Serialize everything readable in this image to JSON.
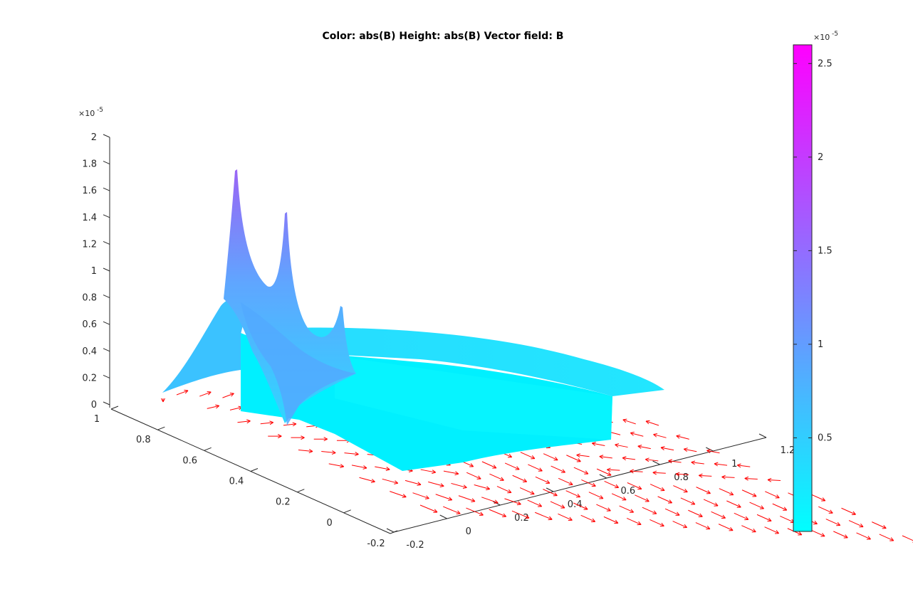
{
  "chart_data": {
    "type": "surface3d",
    "title": "Color: abs(B)  Height: abs(B)  Vector field: B",
    "xlabel": "",
    "ylabel": "",
    "zlabel": "",
    "z_exponent_label": "×10",
    "z_exponent": "-5",
    "colorbar_exponent_label": "×10",
    "colorbar_exponent": "-5",
    "x_ticks": [
      "-0.2",
      "0",
      "0.2",
      "0.4",
      "0.6",
      "0.8",
      "1",
      "1.2"
    ],
    "y_ticks": [
      "-0.2",
      "0",
      "0.2",
      "0.4",
      "0.6",
      "0.8",
      "1"
    ],
    "z_ticks": [
      "0",
      "0.2",
      "0.4",
      "0.6",
      "0.8",
      "1",
      "1.2",
      "1.4",
      "1.6",
      "1.8",
      "2"
    ],
    "xlim": [
      -0.2,
      1.2
    ],
    "ylim": [
      -0.2,
      1.0
    ],
    "zlim": [
      0,
      2
    ],
    "colorbar": {
      "ticks": [
        "0.5",
        "1",
        "1.5",
        "2",
        "2.5"
      ],
      "tick_values": [
        0.5,
        1,
        1.5,
        2,
        2.5
      ],
      "range": [
        0,
        2.6
      ],
      "colormap": "cool",
      "color_low": "#00ffff",
      "color_high": "#ff00ff"
    },
    "surface_color": "#33ccff",
    "vector_color": "#ff0000",
    "grid": false
  }
}
